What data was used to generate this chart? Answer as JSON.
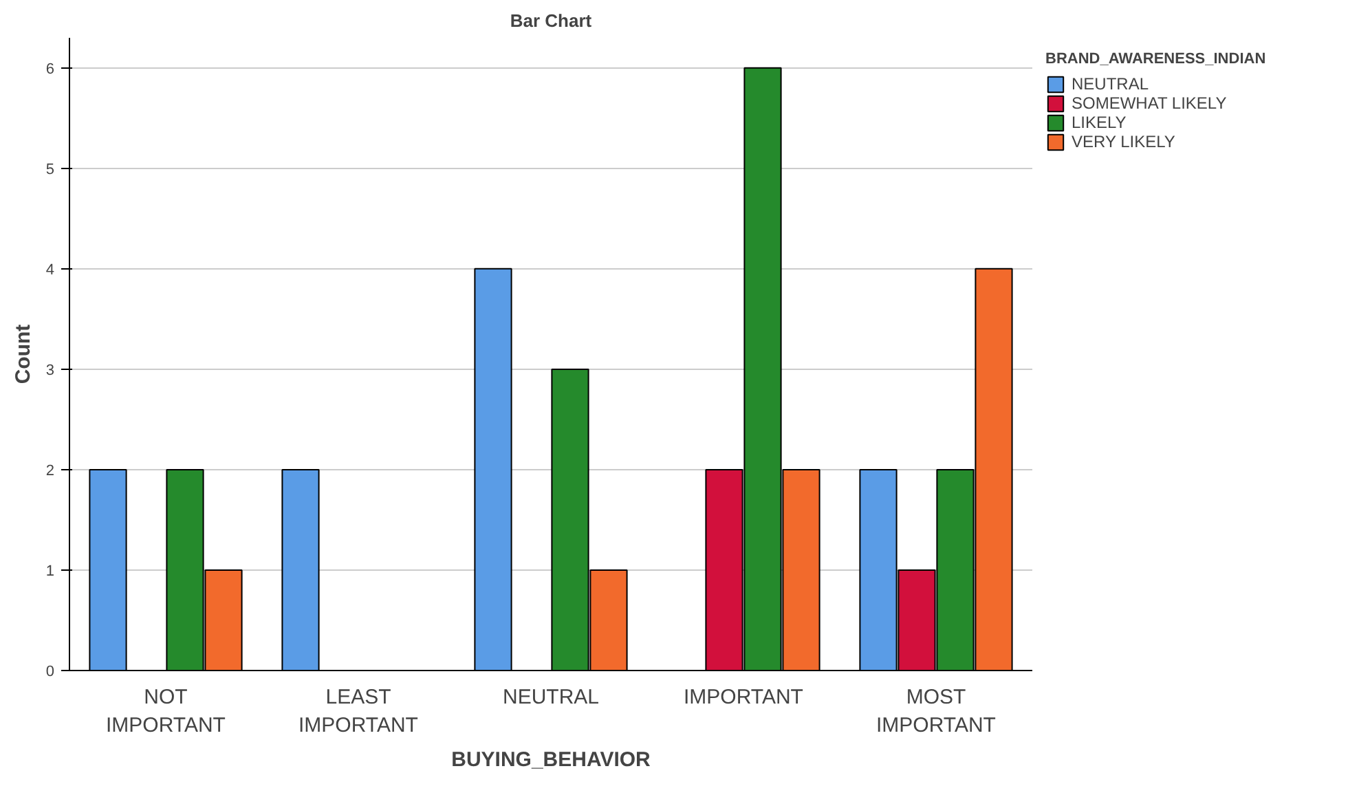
{
  "chart_data": {
    "type": "bar",
    "title": "Bar Chart",
    "xlabel": "BUYING_BEHAVIOR",
    "ylabel": "Count",
    "legend_title": "BRAND_AWARENESS_INDIAN",
    "categories": [
      "NOT IMPORTANT",
      "LEAST IMPORTANT",
      "NEUTRAL",
      "IMPORTANT",
      "MOST IMPORTANT"
    ],
    "series": [
      {
        "name": "NEUTRAL",
        "color": "#5a9ce6",
        "values": [
          2,
          2,
          4,
          null,
          2
        ]
      },
      {
        "name": "SOMEWHAT LIKELY",
        "color": "#d2103c",
        "values": [
          null,
          null,
          null,
          2,
          1
        ]
      },
      {
        "name": "LIKELY",
        "color": "#258a2c",
        "values": [
          2,
          null,
          3,
          6,
          2
        ]
      },
      {
        "name": "VERY LIKELY",
        "color": "#f26a2c",
        "values": [
          1,
          null,
          1,
          2,
          4
        ]
      }
    ],
    "ylim": [
      0,
      6.3
    ],
    "yticks": [
      0,
      1,
      2,
      3,
      4,
      5,
      6
    ],
    "grid": "y",
    "legend": "right"
  }
}
